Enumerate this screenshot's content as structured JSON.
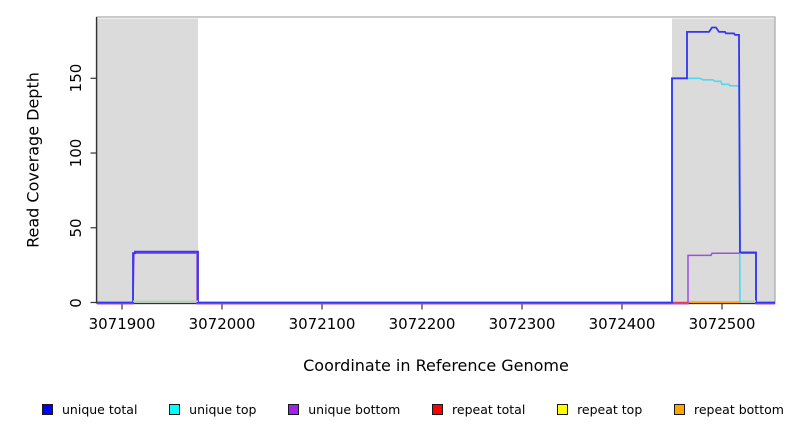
{
  "colors": {
    "background": "#ffffff",
    "shading": "#dbdbdb",
    "plot_border": "#a8a8a8",
    "axis": "#333333",
    "text": "#000000"
  },
  "chart_data": {
    "type": "line",
    "title": "",
    "xlabel": "Coordinate in Reference Genome",
    "ylabel": "Read Coverage Depth",
    "xlim": [
      3071875,
      3072553
    ],
    "ylim": [
      0,
      191
    ],
    "x_ticks": [
      3071900,
      3072000,
      3072100,
      3072200,
      3072300,
      3072400,
      3072500
    ],
    "y_ticks": [
      0,
      50,
      100,
      150
    ],
    "grid": false,
    "legend_position": "bottom",
    "background_shading": {
      "color": "#dbdbdb",
      "regions": [
        {
          "from": 3071875,
          "to": 3071976
        },
        {
          "from": 3072450,
          "to": 3072553
        }
      ]
    },
    "legend": [
      {
        "label": "unique total",
        "color": "#0000ff"
      },
      {
        "label": "unique top",
        "color": "#00ffff"
      },
      {
        "label": "unique bottom",
        "color": "#a020f0"
      },
      {
        "label": "repeat total",
        "color": "#ff0000"
      },
      {
        "label": "repeat top",
        "color": "#ffff00"
      },
      {
        "label": "repeat bottom",
        "color": "#ffa500"
      }
    ],
    "series": [
      {
        "name": "repeat total",
        "color": "#e23a55",
        "width": 1.5,
        "segments": [
          [
            [
              3072450,
              0
            ],
            [
              3072466,
              0
            ]
          ]
        ]
      },
      {
        "name": "repeat bottom",
        "color": "#ffa018",
        "width": 1.8,
        "segments": [
          [
            [
              3072466,
              0.3
            ],
            [
              3072519,
              0.3
            ]
          ]
        ]
      },
      {
        "name": "unique bottom",
        "color": "#9c4fe0",
        "width": 1.5,
        "segments": [
          [
            [
              3071875,
              -0.8
            ],
            [
              3071911,
              -0.8
            ],
            [
              3071912,
              33
            ],
            [
              3071975,
              33
            ],
            [
              3071975,
              -0.8
            ],
            [
              3072466,
              -0.8
            ],
            [
              3072466,
              31.5
            ],
            [
              3072489,
              31.5
            ],
            [
              3072490,
              33
            ],
            [
              3072534,
              33
            ],
            [
              3072534,
              -0.8
            ],
            [
              3072553,
              -0.8
            ]
          ]
        ]
      },
      {
        "name": "unique top",
        "color": "#4fd8ee",
        "width": 1.6,
        "segments": [
          [
            [
              3072450,
              0
            ],
            [
              3072450,
              150
            ],
            [
              3072478,
              150
            ],
            [
              3072481,
              149
            ],
            [
              3072491,
              149
            ],
            [
              3072493,
              148
            ],
            [
              3072499,
              148
            ],
            [
              3072500,
              146
            ],
            [
              3072507,
              146
            ],
            [
              3072508,
              145
            ],
            [
              3072517,
              145
            ],
            [
              3072518,
              0
            ]
          ]
        ]
      },
      {
        "name": "unique total",
        "color": "#3434f2",
        "width": 1.8,
        "segments": [
          [
            [
              3071875,
              0
            ],
            [
              3071911,
              0
            ],
            [
              3071911,
              33
            ],
            [
              3071913,
              33
            ],
            [
              3071913,
              34
            ],
            [
              3071976,
              34
            ],
            [
              3071976,
              0
            ],
            [
              3072450,
              0
            ],
            [
              3072450,
              150
            ],
            [
              3072465,
              150
            ],
            [
              3072465,
              181
            ],
            [
              3072487,
              181
            ],
            [
              3072490,
              184
            ],
            [
              3072494,
              184
            ],
            [
              3072497,
              181
            ],
            [
              3072503,
              181
            ],
            [
              3072504,
              180
            ],
            [
              3072512,
              180
            ],
            [
              3072513,
              179
            ],
            [
              3072517,
              179
            ],
            [
              3072518,
              33.5
            ],
            [
              3072534,
              33.5
            ],
            [
              3072534,
              0
            ],
            [
              3072553,
              0
            ]
          ]
        ]
      },
      {
        "name": "repeat top",
        "color": "#a4dfa4",
        "width": 1.5,
        "segments": [
          [
            [
              3071911,
              0.9
            ],
            [
              3071976,
              0.9
            ]
          ],
          [
            [
              3072519,
              0.9
            ],
            [
              3072534,
              0.9
            ]
          ]
        ]
      }
    ]
  }
}
